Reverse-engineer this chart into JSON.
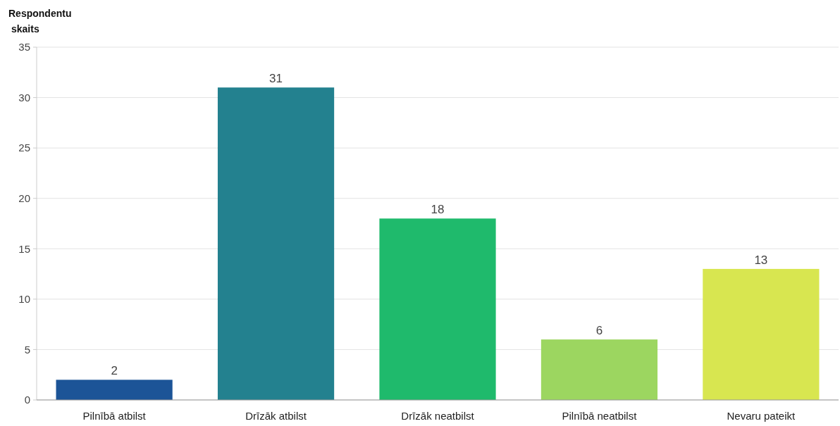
{
  "chart_data": {
    "type": "bar",
    "ylabel": "Respondentu skaits",
    "categories": [
      "Pilnībā atbilst",
      "Drīzāk atbilst",
      "Drīzāk neatbilst",
      "Pilnībā neatbilst",
      "Nevaru pateikt"
    ],
    "values": [
      2,
      31,
      18,
      6,
      13
    ],
    "colors": [
      "#1c5497",
      "#23818f",
      "#1fba6c",
      "#9cd660",
      "#d8e650"
    ],
    "ylim": [
      0,
      35
    ],
    "yticks": [
      0,
      5,
      10,
      15,
      20,
      25,
      30,
      35
    ],
    "grid": "y",
    "data_labels": true
  }
}
